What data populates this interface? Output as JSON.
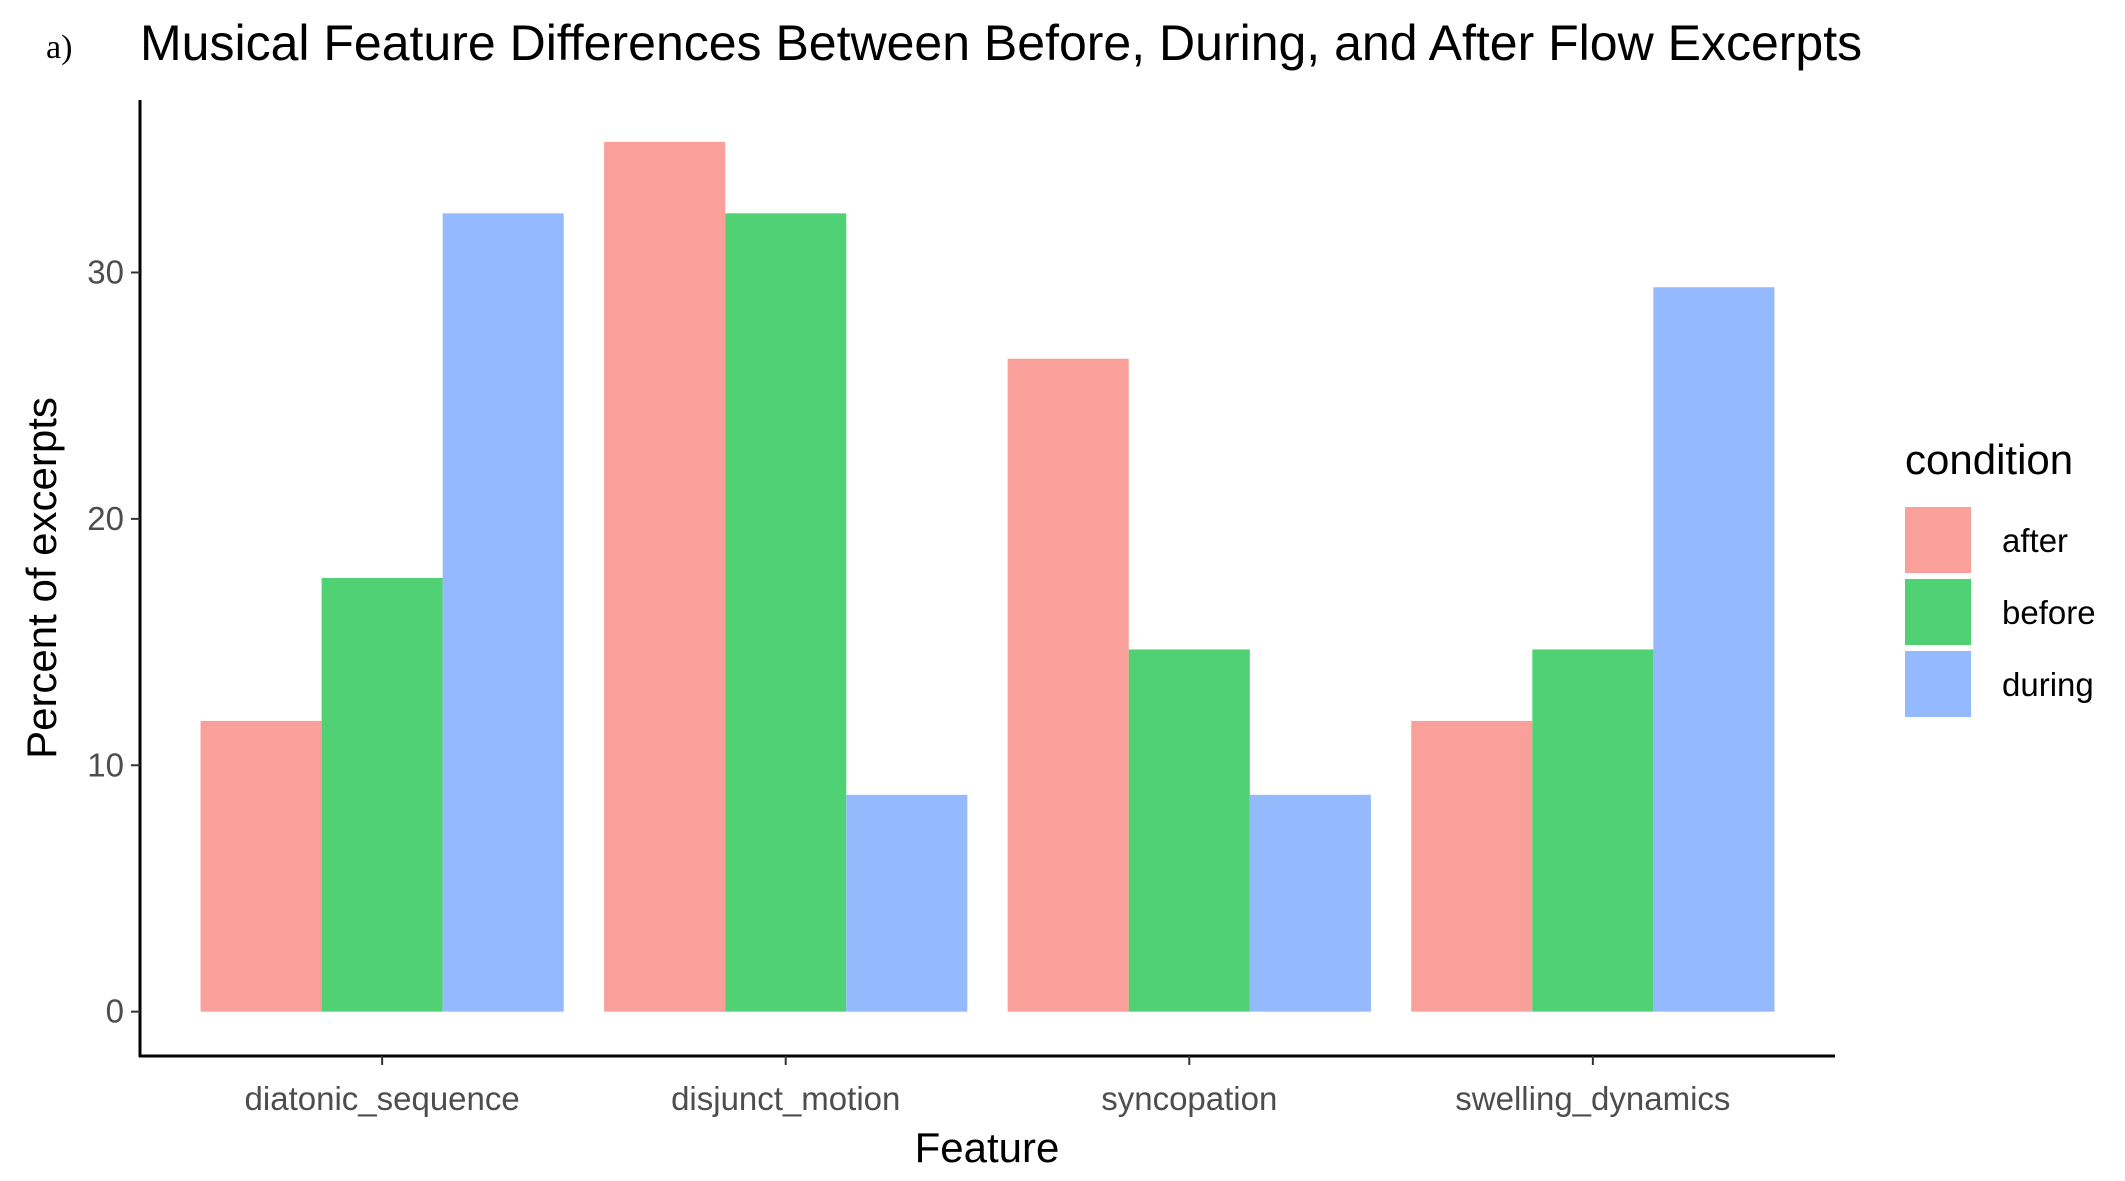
{
  "panel_label": "a)",
  "chart_data": {
    "type": "bar",
    "title": "Musical Feature Differences Between Before, During, and After Flow Excerpts",
    "xlabel": "Feature",
    "ylabel": "Percent of excerpts",
    "categories": [
      "diatonic_sequence",
      "disjunct_motion",
      "syncopation",
      "swelling_dynamics"
    ],
    "series": [
      {
        "name": "after",
        "color": "#F8A099",
        "values": [
          11.8,
          35.3,
          26.5,
          11.8
        ]
      },
      {
        "name": "before",
        "color": "#4FD174",
        "values": [
          17.6,
          32.4,
          14.7,
          14.7
        ]
      },
      {
        "name": "during",
        "color": "#94B9FD",
        "values": [
          32.4,
          8.8,
          8.8,
          29.4
        ]
      }
    ],
    "yticks": [
      0,
      10,
      20,
      30
    ],
    "ylim": [
      -1.8,
      37.0
    ],
    "grid": false,
    "legend": {
      "title": "condition",
      "position": "right"
    }
  }
}
